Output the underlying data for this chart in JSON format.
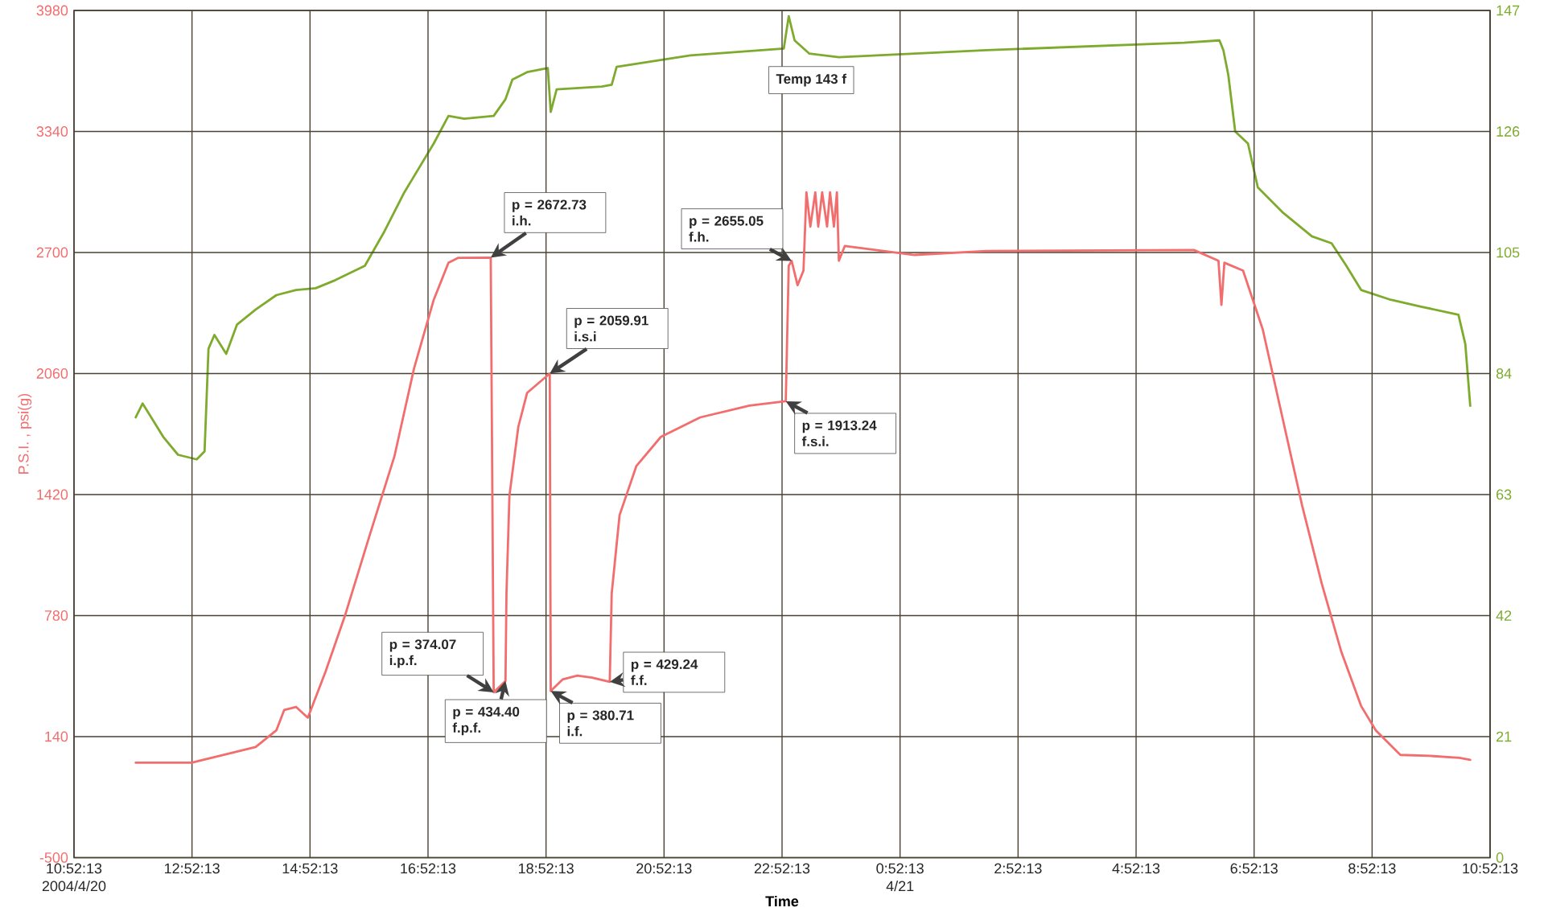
{
  "chart_data": {
    "type": "line",
    "xlabel": "Time",
    "ylabel": "P.S.I. , psi(g)",
    "xlim": [
      "2004-04-20T10:52:13",
      "2004-04-21T10:52:13"
    ],
    "xticks": [
      {
        "value": "2004-04-20T10:52:13",
        "label": "10:52:13 2004/4/20"
      },
      {
        "value": "2004-04-20T12:52:13",
        "label": "12:52:13"
      },
      {
        "value": "2004-04-20T14:52:13",
        "label": "14:52:13"
      },
      {
        "value": "2004-04-20T16:52:13",
        "label": "16:52:13"
      },
      {
        "value": "2004-04-20T18:52:13",
        "label": "18:52:13"
      },
      {
        "value": "2004-04-20T20:52:13",
        "label": "20:52:13"
      },
      {
        "value": "2004-04-20T22:52:13",
        "label": "22:52:13"
      },
      {
        "value": "2004-04-21T00:52:13",
        "label": "0:52:13 4/21"
      },
      {
        "value": "2004-04-21T02:52:13",
        "label": "2:52:13"
      },
      {
        "value": "2004-04-21T04:52:13",
        "label": "4:52:13"
      },
      {
        "value": "2004-04-21T06:52:13",
        "label": "6:52:13"
      },
      {
        "value": "2004-04-21T08:52:13",
        "label": "8:52:13"
      },
      {
        "value": "2004-04-21T10:52:13",
        "label": "10:52:13"
      }
    ],
    "ylim": [
      -500,
      3980
    ],
    "yticks": [
      -500,
      140,
      780,
      1420,
      2060,
      2700,
      3340,
      3980
    ],
    "y2lim": [
      0,
      147
    ],
    "y2ticks": [
      0,
      21,
      42,
      63,
      84,
      105,
      126,
      147
    ],
    "grid": true,
    "series": [
      {
        "color": "#f26d6d",
        "x": [
          "2004-04-20T11:55",
          "2004-04-20T12:52",
          "2004-04-20T13:12",
          "2004-04-20T13:57",
          "2004-04-20T14:18",
          "2004-04-20T14:26",
          "2004-04-20T14:38",
          "2004-04-20T14:50",
          "2004-04-20T15:08",
          "2004-04-20T15:28",
          "2004-04-20T15:53",
          "2004-04-20T16:18",
          "2004-04-20T16:38",
          "2004-04-20T16:58",
          "2004-04-20T17:13",
          "2004-04-20T17:23",
          "2004-04-20T17:56",
          "2004-04-20T17:59",
          "2004-04-20T18:11",
          "2004-04-20T18:12",
          "2004-04-20T18:15",
          "2004-04-20T18:24",
          "2004-04-20T18:33",
          "2004-04-20T18:56",
          "2004-04-20T18:57",
          "2004-04-20T19:09",
          "2004-04-20T19:24",
          "2004-04-20T19:39",
          "2004-04-20T19:57",
          "2004-04-20T19:59",
          "2004-04-20T20:07",
          "2004-04-20T20:24",
          "2004-04-20T20:49",
          "2004-04-20T21:29",
          "2004-04-20T22:19",
          "2004-04-20T22:56",
          "2004-04-20T22:59",
          "2004-04-20T23:02",
          "2004-04-20T23:08",
          "2004-04-20T23:14",
          "2004-04-20T23:17",
          "2004-04-20T23:21",
          "2004-04-20T23:26",
          "2004-04-20T23:29",
          "2004-04-20T23:33",
          "2004-04-20T23:38",
          "2004-04-20T23:41",
          "2004-04-20T23:45",
          "2004-04-20T23:48",
          "2004-04-20T23:50",
          "2004-04-20T23:56",
          "2004-04-21T01:07",
          "2004-04-21T02:20",
          "2004-04-21T05:51",
          "2004-04-21T06:16",
          "2004-04-21T06:19",
          "2004-04-21T06:22",
          "2004-04-21T06:41",
          "2004-04-21T07:01",
          "2004-04-21T07:21",
          "2004-04-21T07:41",
          "2004-04-21T08:01",
          "2004-04-21T08:21",
          "2004-04-21T08:41",
          "2004-04-21T08:56",
          "2004-04-21T09:21",
          "2004-04-21T09:51",
          "2004-04-21T10:21",
          "2004-04-21T10:32"
        ],
        "values": [
          2,
          2,
          28,
          85,
          173,
          281,
          297,
          240,
          483,
          783,
          1207,
          1621,
          2087,
          2449,
          2646,
          2672,
          2672.73,
          374.07,
          434.4,
          900,
          1414,
          1777,
          1958,
          2059.91,
          380.71,
          442,
          462,
          452,
          429.24,
          897,
          1311,
          1570,
          1725,
          1828,
          1890,
          1913.24,
          2630,
          2655.05,
          2527,
          2604,
          3018,
          2837,
          3018,
          2837,
          3018,
          2837,
          3018,
          2837,
          3018,
          2656,
          2734,
          2687,
          2708,
          2713,
          2656,
          2423,
          2646,
          2604,
          2294,
          1828,
          1363,
          949,
          587,
          302,
          173,
          43,
          38,
          28,
          17
        ]
      },
      {
        "color": "#7eab2e",
        "axis": "y2",
        "x": [
          "2004-04-20T11:55",
          "2004-04-20T12:02",
          "2004-04-20T12:23",
          "2004-04-20T12:38",
          "2004-04-20T12:57",
          "2004-04-20T13:05",
          "2004-04-20T13:09",
          "2004-04-20T13:15",
          "2004-04-20T13:27",
          "2004-04-20T13:38",
          "2004-04-20T13:57",
          "2004-04-20T14:18",
          "2004-04-20T14:38",
          "2004-04-20T14:58",
          "2004-04-20T15:18",
          "2004-04-20T15:48",
          "2004-04-20T16:08",
          "2004-04-20T16:28",
          "2004-04-20T16:58",
          "2004-04-20T17:13",
          "2004-04-20T17:29",
          "2004-04-20T17:59",
          "2004-04-20T18:11",
          "2004-04-20T18:18",
          "2004-04-20T18:33",
          "2004-04-20T18:54",
          "2004-04-20T18:57",
          "2004-04-20T19:03",
          "2004-04-20T19:49",
          "2004-04-20T19:59",
          "2004-04-20T20:04",
          "2004-04-20T21:19",
          "2004-04-20T22:54",
          "2004-04-20T22:59",
          "2004-04-20T23:05",
          "2004-04-20T23:20",
          "2004-04-20T23:50",
          "2004-04-21T02:20",
          "2004-04-21T05:41",
          "2004-04-21T06:17",
          "2004-04-21T06:21",
          "2004-04-21T06:26",
          "2004-04-21T06:33",
          "2004-04-21T06:46",
          "2004-04-21T06:56",
          "2004-04-21T07:21",
          "2004-04-21T07:51",
          "2004-04-21T08:11",
          "2004-04-21T08:26",
          "2004-04-21T08:41",
          "2004-04-21T09:11",
          "2004-04-21T09:42",
          "2004-04-21T10:20",
          "2004-04-21T10:27",
          "2004-04-21T10:32"
        ],
        "values": [
          76.4,
          78.8,
          73.0,
          69.9,
          69.1,
          70.5,
          88.3,
          90.7,
          87.4,
          92.5,
          95.1,
          97.6,
          98.5,
          98.8,
          100.2,
          102.7,
          108.7,
          115.4,
          123.9,
          128.7,
          128.2,
          128.7,
          131.6,
          135.0,
          136.3,
          137.0,
          129.4,
          133.3,
          133.8,
          134.1,
          137.2,
          139.2,
          140.4,
          146,
          141.8,
          139.5,
          138.9,
          140.1,
          141.4,
          141.8,
          140.1,
          135.8,
          126,
          123.9,
          116.3,
          112,
          107.8,
          106.6,
          102.7,
          98.5,
          96.8,
          95.6,
          94.2,
          89.1,
          78.4
        ]
      }
    ],
    "annotations": [
      {
        "text": "p = 2672.73 i.h.",
        "x": "2004-04-20T17:56",
        "y": 2672.73
      },
      "p = 374.07 i.p.f.",
      {
        "text": "p = 434.40 f.p.f.",
        "x": "2004-04-20T18:11",
        "y": 434.4
      },
      {
        "text": "p = 2059.91 i.s.i",
        "x": "2004-04-20T18:56",
        "y": 2059.91
      },
      {
        "text": "p = 380.71 i.f.",
        "x": "2004-04-20T18:57",
        "y": 380.71
      },
      {
        "text": "p = 429.24 f.f.",
        "x": "2004-04-20T19:57",
        "y": 429.24
      },
      {
        "text": "p = 2655.05 f.h.",
        "x": "2004-04-20T23:02",
        "y": 2655.05
      },
      {
        "text": "p = 1913.24 f.s.i.",
        "x": "2004-04-20T22:56",
        "y": 1913.24
      },
      {
        "text": "Temp 143 f",
        "x": "2004-04-20T22:59",
        "y": 3858
      }
    ]
  }
}
